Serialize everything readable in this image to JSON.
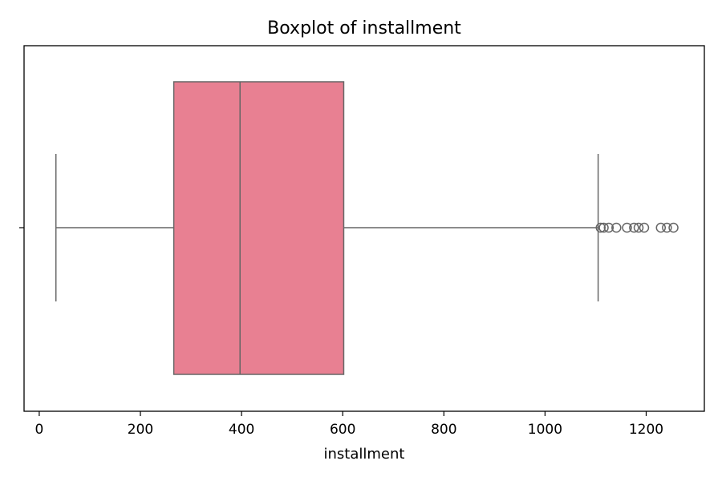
{
  "chart_data": {
    "type": "boxplot",
    "title": "Boxplot of installment",
    "xlabel": "installment",
    "ylabel": "",
    "orientation": "horizontal",
    "xlim": [
      -30,
      1315
    ],
    "xticks": [
      0,
      200,
      400,
      600,
      800,
      1000,
      1200
    ],
    "xtick_labels": [
      "0",
      "200",
      "400",
      "600",
      "800",
      "1000",
      "1200"
    ],
    "grid": false,
    "box": {
      "whisker_low": 33,
      "q1": 266,
      "median": 397,
      "q3": 602,
      "whisker_high": 1105,
      "outliers": [
        1110,
        1116,
        1126,
        1141,
        1162,
        1176,
        1185,
        1196,
        1229,
        1241,
        1254
      ]
    },
    "colors": {
      "box_fill": "#e88092",
      "line": "#666666",
      "axes": "#000000"
    }
  }
}
